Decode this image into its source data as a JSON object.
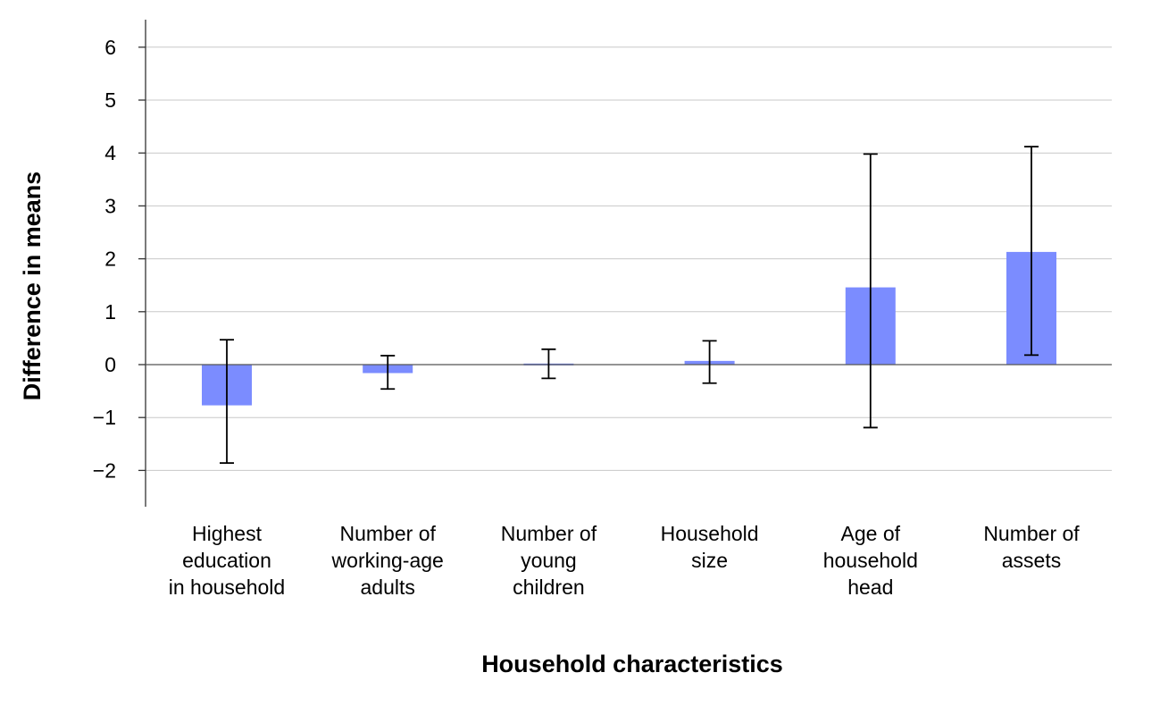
{
  "chart_data": {
    "type": "bar",
    "categories": [
      [
        "Highest",
        "education",
        "in household"
      ],
      [
        "Number of",
        "working-age",
        "adults"
      ],
      [
        "Number of",
        "young",
        "children"
      ],
      [
        "Household",
        "size"
      ],
      [
        "Age of",
        "household",
        "head"
      ],
      [
        "Number of",
        "assets"
      ]
    ],
    "values": [
      -0.77,
      -0.16,
      0.02,
      0.07,
      1.46,
      2.13
    ],
    "error_low": [
      -1.86,
      -0.46,
      -0.26,
      -0.35,
      -1.19,
      0.18
    ],
    "error_high": [
      0.47,
      0.17,
      0.29,
      0.45,
      3.98,
      4.12
    ],
    "title": "",
    "xlabel": "Household characteristics",
    "ylabel": "Difference in means",
    "ylim": [
      -2.6,
      6.5
    ],
    "yticks": [
      6,
      5,
      4,
      3,
      2,
      1,
      0,
      -1,
      -2
    ],
    "ytick_labels": [
      "6",
      "5",
      "4",
      "3",
      "2",
      "1",
      "0",
      "−1",
      "−2"
    ],
    "grid": true,
    "colors": {
      "bar": "#7b8cff",
      "error_bar": "#000000",
      "gridline": "#c8c8c8"
    }
  }
}
